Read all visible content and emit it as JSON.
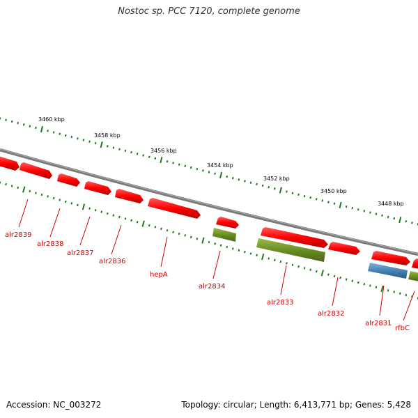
{
  "title": "Nostoc sp. PCC 7120, complete genome",
  "accession": "Accession: NC_003272",
  "topology": "Topology: circular; Length: 6,413,771 bp; Genes: 5,428",
  "colors": {
    "backbone": "#808080",
    "forward_strand": "#ff0000",
    "reverse_strand_olive": "#6b8e23",
    "reverse_strand_blue": "#4682b4",
    "tick": "#006400",
    "gene_label": "#cc0000"
  },
  "ticks": [
    {
      "label": "3460 kbp",
      "kbp": 3460
    },
    {
      "label": "3458 kbp",
      "kbp": 3458
    },
    {
      "label": "3456 kbp",
      "kbp": 3456
    },
    {
      "label": "3454 kbp",
      "kbp": 3454
    },
    {
      "label": "3452 kbp",
      "kbp": 3452
    },
    {
      "label": "3450 kbp",
      "kbp": 3450
    },
    {
      "label": "3448 kbp",
      "kbp": 3448
    }
  ],
  "genes": [
    {
      "name": "alr2839",
      "strand": "forward"
    },
    {
      "name": "alr2838",
      "strand": "forward"
    },
    {
      "name": "alr2837",
      "strand": "forward"
    },
    {
      "name": "alr2836",
      "strand": "forward"
    },
    {
      "name": "hepA",
      "strand": "forward"
    },
    {
      "name": "alr2834",
      "strand": "forward"
    },
    {
      "name": "alr2833",
      "strand": "forward"
    },
    {
      "name": "alr2832",
      "strand": "forward"
    },
    {
      "name": "alr2831",
      "strand": "forward"
    },
    {
      "name": "rfbC",
      "strand": "forward"
    }
  ]
}
